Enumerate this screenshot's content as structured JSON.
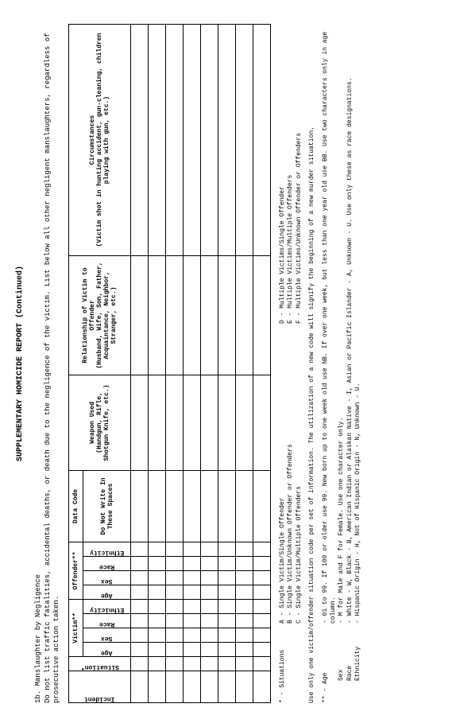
{
  "title": "SUPPLEMENTARY HOMICIDE REPORT (Continued)",
  "section_num": "1b.",
  "section_title": "Manslaughter by Negligence",
  "section_desc": "Do not list traffic fatalities, accidental deaths, or death due to the negligence of the victim.  List below all other negligent manslaughters, regardless of prosecutive action taken.",
  "table": {
    "columns": {
      "incident": "Incident",
      "situation": "Situation*",
      "victim_group": "Victim**",
      "offender_group": "Offender**",
      "age": "Age",
      "sex": "Sex",
      "race": "Race",
      "ethnicity": "Ethnicity",
      "datacode": "Data Code",
      "datacode_sub": "Do Not Write In These Spaces",
      "weapon": "Weapon Used",
      "weapon_sub": "(Handgun, Rifle, Shotgun Knife, etc.)",
      "relation": "Relationship of Victim to Offender",
      "relation_sub": "(Husband, Wife, Son, Father, Acquaintance, Neighbor, Stranger, etc.)",
      "circ": "Circumstances",
      "circ_sub": "(Victim shot in hunting accident, gun-cleaning, children playing with gun, etc.)"
    },
    "row_count": 8
  },
  "legend": {
    "situations_label": "* - Situations",
    "situations": {
      "A": "A - Single Victim/Single Offender",
      "B": "B - Single Victim/Unknown Offender or Offenders",
      "C": "C - Single Victim/Multiple Offenders",
      "D": "D - Multiple Victims/Single Offender",
      "E": "E - Multiple Victims/Multiple Offenders",
      "F": "F - Multiple Victims/Unknown Offender or Offenders"
    },
    "note": "Use only one victim/offender situation code per set of information.  The utilization of a new code will signify the beginning of a new murder situation.",
    "defs_label": "** -",
    "age_label": "Age",
    "age_def": "- 01 to 99.  If 100 or older use 99.  New born up to one week old use NB.  If over one week, but less than one year old use BB.  Use two characters only in age column.",
    "sex_label": "Sex",
    "sex_def": "- M for Male and F for Female.  Use one character only.",
    "race_label": "Race",
    "race_def": "- White - W, Black - B, American Indian or Alaskan Native - I, Asian or Pacific Islander - A, Unknown - U.  Use only these as race designations.",
    "eth_label": "Ethnicity",
    "eth_def": "- Hispanic Origin - H, Not of Hispanic Origin - N, Unknown - U."
  }
}
